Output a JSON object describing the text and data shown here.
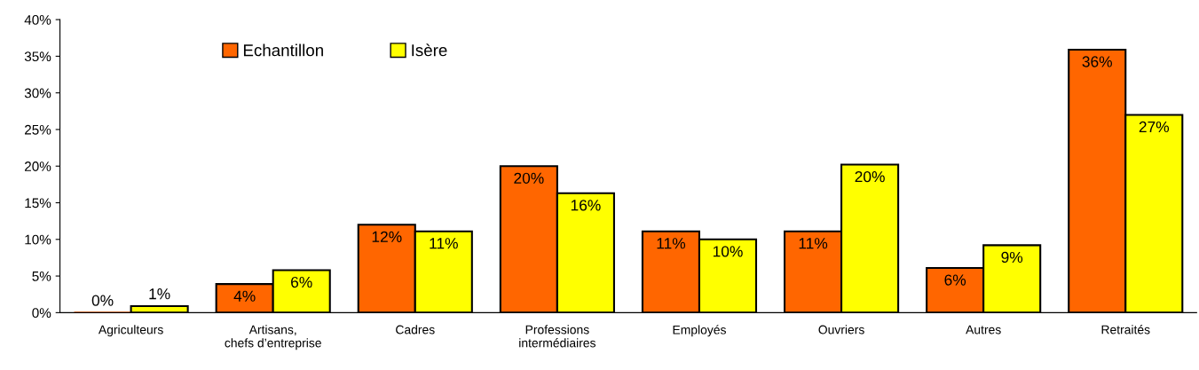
{
  "chart_data": {
    "type": "bar",
    "categories": [
      "Agriculteurs",
      "Artisans,\nchefs d’entreprise",
      "Cadres",
      "Professions\nintermédiaires",
      "Employés",
      "Ouvriers",
      "Autres",
      "Retraités"
    ],
    "series": [
      {
        "name": "Echantillon",
        "color": "#ff6600",
        "values": [
          0,
          3.9,
          12,
          20,
          11.1,
          11.1,
          6.1,
          35.9
        ],
        "value_labels": [
          "0%",
          "4%",
          "12%",
          "20%",
          "11%",
          "11%",
          "6%",
          "36%"
        ]
      },
      {
        "name": "Isère",
        "color": "#ffff00",
        "values": [
          0.9,
          5.8,
          11.1,
          16.3,
          10,
          20.2,
          9.2,
          27
        ],
        "value_labels": [
          "1%",
          "6%",
          "11%",
          "16%",
          "10%",
          "20%",
          "9%",
          "27%"
        ]
      }
    ],
    "ylim": [
      0,
      40
    ],
    "yticks": [
      {
        "value": 0,
        "label": "0%"
      },
      {
        "value": 5,
        "label": "5%"
      },
      {
        "value": 10,
        "label": "10%"
      },
      {
        "value": 15,
        "label": "15%"
      },
      {
        "value": 20,
        "label": "20%"
      },
      {
        "value": 25,
        "label": "25%"
      },
      {
        "value": 30,
        "label": "30%"
      },
      {
        "value": 35,
        "label": "35%"
      },
      {
        "value": 40,
        "label": "40%"
      }
    ],
    "grid": false,
    "legend": "top left"
  }
}
